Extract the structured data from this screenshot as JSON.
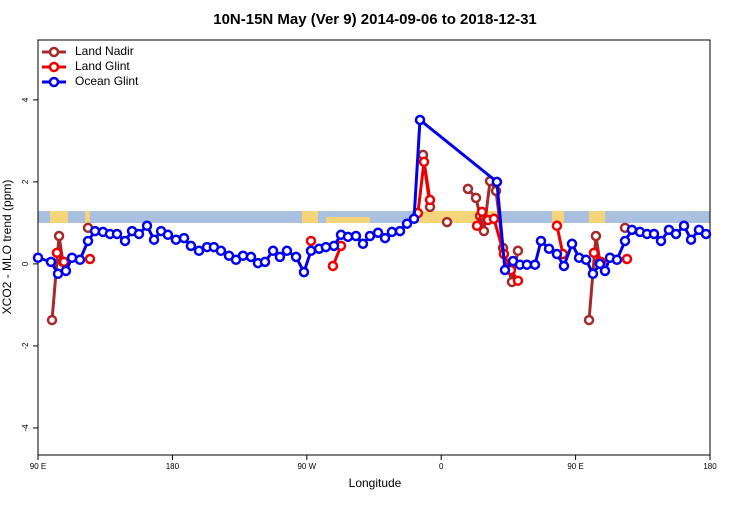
{
  "chart_data": {
    "type": "line",
    "title": "10N-15N May (Ver 9)   2014-09-06 to 2018-12-31",
    "xlabel": "Longitude",
    "ylabel": "XCO2 - MLO trend (ppm)",
    "xlim": [
      90,
      540
    ],
    "xticks": [
      {
        "value": 90,
        "label": "90 E"
      },
      180,
      {
        "value": 270,
        "label": "90 W"
      },
      {
        "value": 360,
        "label": "0"
      },
      {
        "value": 450,
        "label": "90 E"
      },
      {
        "value": 540,
        "label": "180"
      }
    ],
    "ylim": [
      -4.66,
      5.46
    ],
    "yticks": [
      -4,
      -2,
      0,
      2,
      4
    ],
    "legend": "top-left",
    "series": [
      {
        "name": "Land Nadir",
        "color": "#a52a2a",
        "x": [
          99.4,
          104.1,
          106.7,
          null,
          123.5,
          null,
          347.8,
          352.5,
          null,
          363.9,
          null,
          377.9,
          383.3,
          386.0,
          388.6,
          392.7,
          396.7,
          401.4,
          407.4,
          411.4,
          null,
          459.0,
          463.6,
          466.3,
          null,
          483.1
        ],
        "values": [
          -1.37,
          0.68,
          0.05,
          null,
          0.88,
          null,
          2.66,
          1.39,
          null,
          1.02,
          null,
          1.83,
          1.61,
          1.17,
          0.8,
          2.02,
          1.78,
          0.39,
          -0.44,
          0.32,
          null,
          -1.37,
          0.68,
          0.05,
          null,
          0.88
        ]
      },
      {
        "name": "Land Glint",
        "color": "#ee0000",
        "x": [
          102.7,
          107.4,
          null,
          124.8,
          null,
          272.8,
          null,
          287.5,
          292.9,
          null,
          344.4,
          348.5,
          352.5,
          null,
          384.0,
          387.3,
          391.3,
          395.3,
          402.0,
          406.7,
          411.4,
          null,
          437.5,
          441.5,
          null,
          462.3,
          467.0,
          null,
          484.4
        ],
        "values": [
          0.27,
          0.05,
          null,
          0.12,
          null,
          0.56,
          null,
          -0.05,
          0.44,
          null,
          1.24,
          2.49,
          1.56,
          null,
          0.93,
          1.27,
          1.07,
          1.1,
          0.24,
          -0.15,
          -0.41,
          null,
          0.93,
          0.24,
          null,
          0.27,
          0.05,
          null,
          0.12
        ]
      },
      {
        "name": "Ocean Glint",
        "color": "#0000ee",
        "x": [
          90.0,
          98.7,
          103.4,
          108.7,
          112.8,
          118.1,
          123.5,
          128.2,
          133.5,
          138.2,
          142.9,
          148.3,
          153.0,
          157.6,
          163.0,
          167.7,
          172.4,
          177.0,
          182.4,
          187.8,
          192.4,
          197.8,
          203.2,
          207.8,
          212.5,
          217.9,
          222.6,
          227.3,
          232.6,
          237.3,
          242.0,
          247.4,
          252.0,
          256.7,
          262.8,
          268.1,
          272.8,
          278.2,
          282.8,
          288.2,
          292.9,
          297.6,
          302.9,
          307.6,
          312.3,
          317.7,
          322.4,
          327.0,
          332.4,
          337.1,
          341.8,
          345.8,
          397.3,
          402.7,
          408.1,
          412.7,
          417.4,
          422.8,
          426.8,
          432.2,
          437.5,
          442.2,
          447.6,
          452.3,
          457.0,
          461.6,
          466.3,
          469.7,
          473.0,
          477.7,
          483.1,
          487.7,
          493.1,
          497.8,
          502.5,
          507.2,
          512.5,
          517.2,
          522.6,
          527.3,
          532.6,
          537.3
        ],
        "values": [
          0.15,
          0.05,
          -0.24,
          -0.17,
          0.15,
          0.1,
          0.56,
          0.8,
          0.78,
          0.73,
          0.73,
          0.56,
          0.8,
          0.73,
          0.93,
          0.59,
          0.8,
          0.71,
          0.59,
          0.63,
          0.44,
          0.32,
          0.41,
          0.41,
          0.32,
          0.2,
          0.1,
          0.2,
          0.17,
          0.02,
          0.05,
          0.32,
          0.17,
          0.32,
          0.17,
          -0.2,
          0.32,
          0.37,
          0.41,
          0.44,
          0.71,
          0.66,
          0.68,
          0.49,
          0.68,
          0.76,
          0.63,
          0.78,
          0.8,
          0.98,
          1.1,
          3.51,
          2.0,
          -0.15,
          0.07,
          -0.02,
          -0.02,
          -0.02,
          0.56,
          0.37,
          0.24,
          -0.05,
          0.49,
          0.15,
          0.1,
          -0.24,
          0.0,
          -0.17,
          0.15,
          0.1,
          0.56,
          0.83,
          0.78,
          0.73,
          0.73,
          0.56,
          0.83,
          0.73,
          0.93,
          0.59,
          0.83,
          0.73
        ]
      }
    ]
  }
}
